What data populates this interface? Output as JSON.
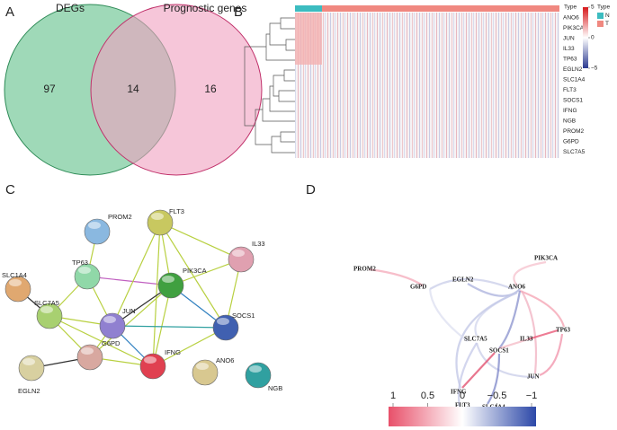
{
  "panels": {
    "A": {
      "label": "A",
      "sets": [
        "DEGs",
        "Prognostic genes"
      ],
      "counts": [
        97,
        14,
        16
      ]
    },
    "B": {
      "label": "B",
      "type_label": "Type",
      "genes": [
        "ANO6",
        "PIK3CA",
        "JUN",
        "IL33",
        "TP63",
        "EGLN2",
        "SLC1A4",
        "FLT3",
        "SOCS1",
        "IFNG",
        "NGB",
        "PROM2",
        "G6PD",
        "SLC7A5"
      ],
      "legend_title": "Type",
      "groups": [
        "N",
        "T"
      ],
      "scale_lim": [
        5,
        -5
      ],
      "scale_ticks": [
        5,
        0,
        {
          "value": -5,
          "label": "−5"
        }
      ]
    },
    "C": {
      "label": "C",
      "nodes": [
        "PROM2",
        "FLT3",
        "IL33",
        "TP63",
        "PIK3CA",
        "SLC1A4",
        "SLC7A5",
        "JUN",
        "SOCS1",
        "G6PD",
        "IFNG",
        "EGLN2",
        "ANO6",
        "NGB"
      ]
    },
    "D": {
      "label": "D",
      "nodes": [
        "PIK3CA",
        "PROM2",
        "G6PD",
        "EGLN2",
        "ANO6",
        "IL33",
        "TP63",
        "SLC7A5",
        "SOCS1",
        "JUN",
        "IFNG",
        "SLC1A4",
        "FLT3"
      ],
      "scale_lim": [
        1,
        -1
      ],
      "scale_ticks": [
        1,
        0.5,
        0,
        {
          "value": -0.5,
          "label": "−0.5"
        },
        {
          "value": -1,
          "label": "−1"
        }
      ]
    }
  }
}
